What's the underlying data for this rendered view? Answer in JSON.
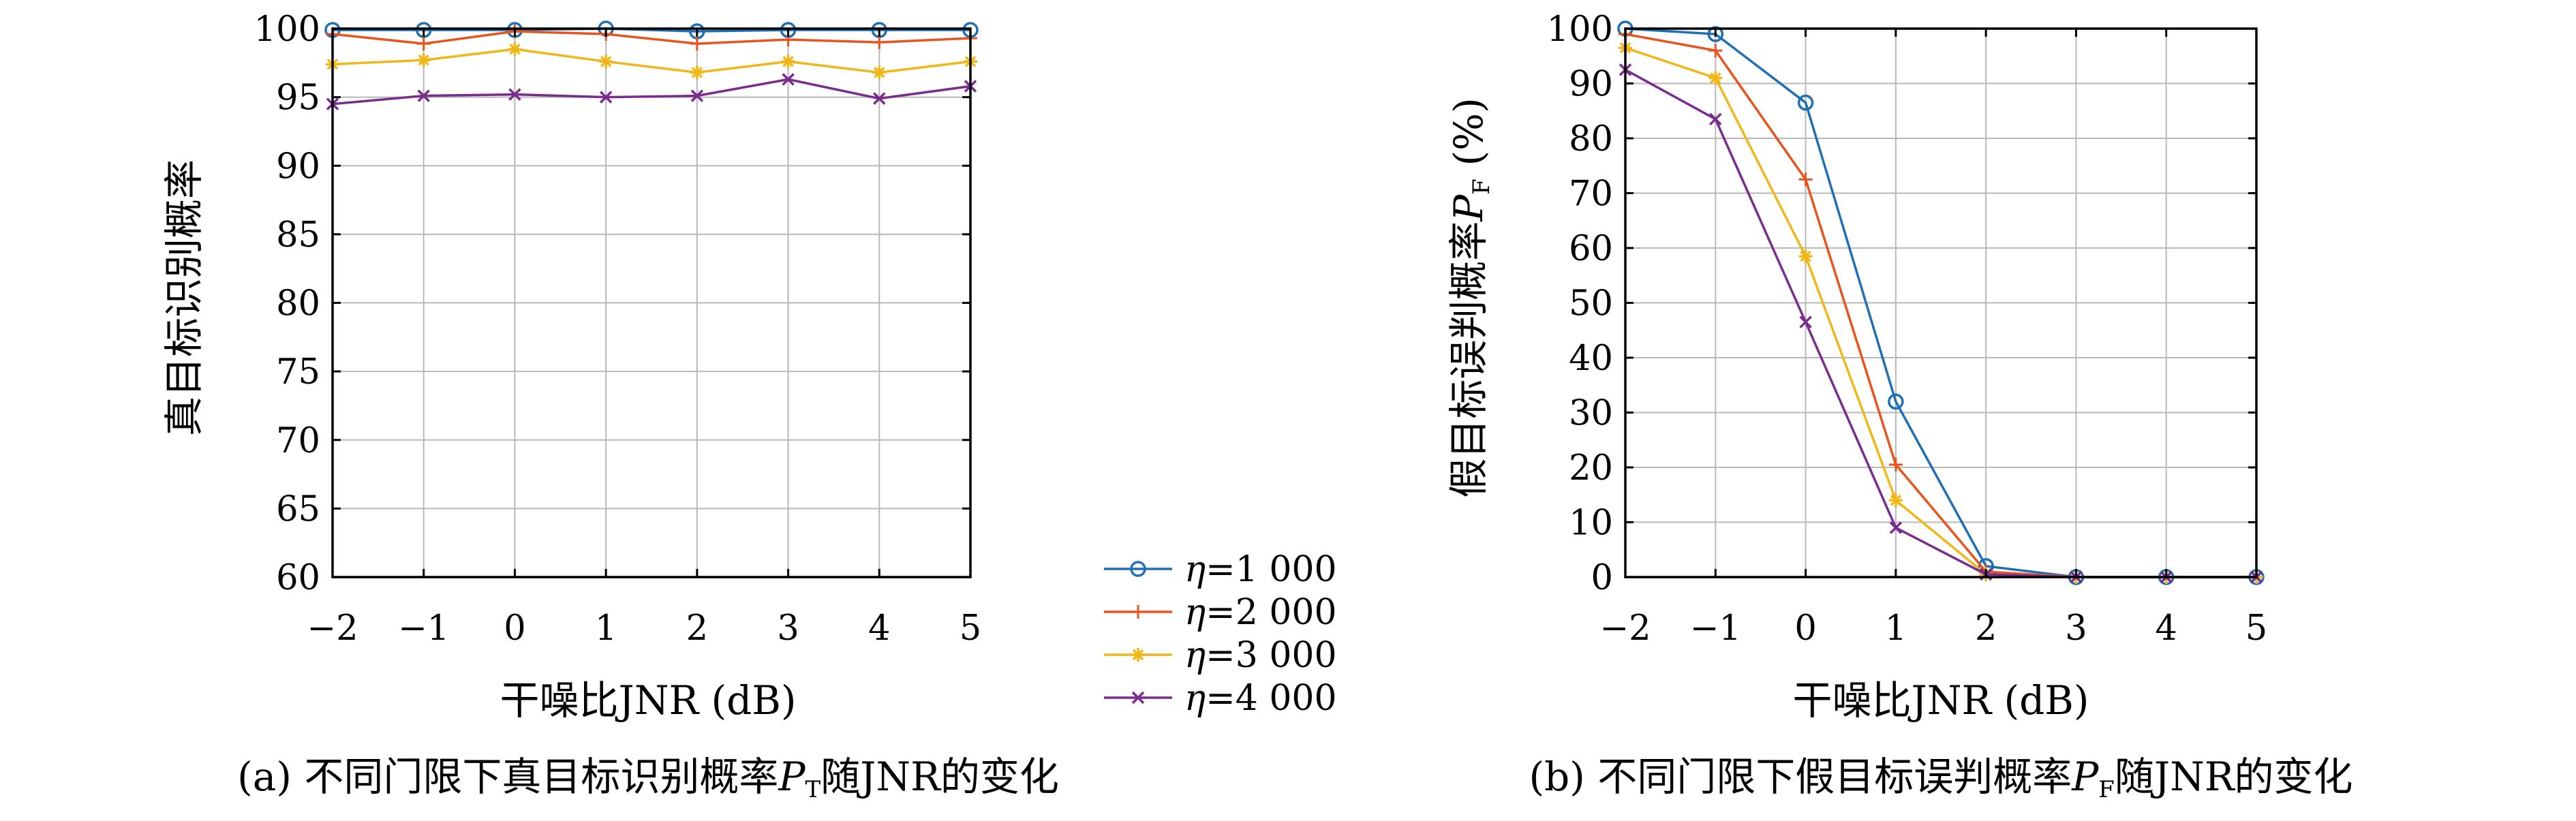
{
  "legend": [
    {
      "symbol": "η",
      "value": "=1 000",
      "color": "#1f6fb4",
      "marker": "circle"
    },
    {
      "symbol": "η",
      "value": "=2 000",
      "color": "#e8541c",
      "marker": "plus"
    },
    {
      "symbol": "η",
      "value": "=3 000",
      "color": "#f1b719",
      "marker": "star"
    },
    {
      "symbol": "η",
      "value": "=4 000",
      "color": "#7a2c8e",
      "marker": "x"
    }
  ],
  "chart_data": [
    {
      "type": "line",
      "title": "",
      "caption_prefix": "(a) 不同门限下真目标识别概率",
      "caption_var": "P",
      "caption_sub": "T",
      "caption_suffix": "随JNR的变化",
      "xlabel": "干噪比JNR (dB)",
      "ylabel": "真目标识别概率",
      "xlim": [
        -2,
        5
      ],
      "ylim": [
        60,
        100
      ],
      "x": [
        -2,
        -1,
        0,
        1,
        2,
        3,
        4,
        5
      ],
      "x_tick_labels": [
        "−2",
        "−1",
        "0",
        "1",
        "2",
        "3",
        "4",
        "5"
      ],
      "y_ticks": [
        60,
        65,
        70,
        75,
        80,
        85,
        90,
        95,
        100
      ],
      "grid": true,
      "series": [
        {
          "name": "η=1 000",
          "values": [
            99.9,
            99.9,
            99.9,
            100.0,
            99.8,
            99.9,
            99.9,
            99.9
          ]
        },
        {
          "name": "η=2 000",
          "values": [
            99.6,
            98.9,
            99.8,
            99.6,
            98.9,
            99.2,
            99.0,
            99.3
          ]
        },
        {
          "name": "η=3 000",
          "values": [
            97.4,
            97.7,
            98.5,
            97.6,
            96.8,
            97.6,
            96.8,
            97.6
          ]
        },
        {
          "name": "η=4 000",
          "values": [
            94.5,
            95.1,
            95.2,
            95.0,
            95.1,
            96.3,
            94.9,
            95.8
          ]
        }
      ]
    },
    {
      "type": "line",
      "title": "",
      "caption_prefix": "(b) 不同门限下假目标误判概率",
      "caption_var": "P",
      "caption_sub": "F",
      "caption_suffix": "随JNR的变化",
      "xlabel": "干噪比JNR (dB)",
      "ylabel_prefix": "假目标误判概率",
      "ylabel_var": "P",
      "ylabel_sub": "F",
      "ylabel_suffix": " (%)",
      "xlim": [
        -2,
        5
      ],
      "ylim": [
        0,
        100
      ],
      "x": [
        -2,
        -1,
        0,
        1,
        2,
        3,
        4,
        5
      ],
      "x_tick_labels": [
        "−2",
        "−1",
        "0",
        "1",
        "2",
        "3",
        "4",
        "5"
      ],
      "y_ticks": [
        0,
        10,
        20,
        30,
        40,
        50,
        60,
        70,
        80,
        90,
        100
      ],
      "grid": true,
      "series": [
        {
          "name": "η=1 000",
          "values": [
            100,
            99,
            86.5,
            32,
            2,
            0,
            0,
            0
          ]
        },
        {
          "name": "η=2 000",
          "values": [
            99,
            96,
            72.5,
            20.5,
            1,
            0,
            0,
            0
          ]
        },
        {
          "name": "η=3 000",
          "values": [
            96.5,
            91,
            58.5,
            14,
            0.5,
            0,
            0,
            0
          ]
        },
        {
          "name": "η=4 000",
          "values": [
            92.5,
            83.5,
            46.5,
            9,
            0.5,
            0,
            0,
            0
          ]
        }
      ]
    }
  ]
}
